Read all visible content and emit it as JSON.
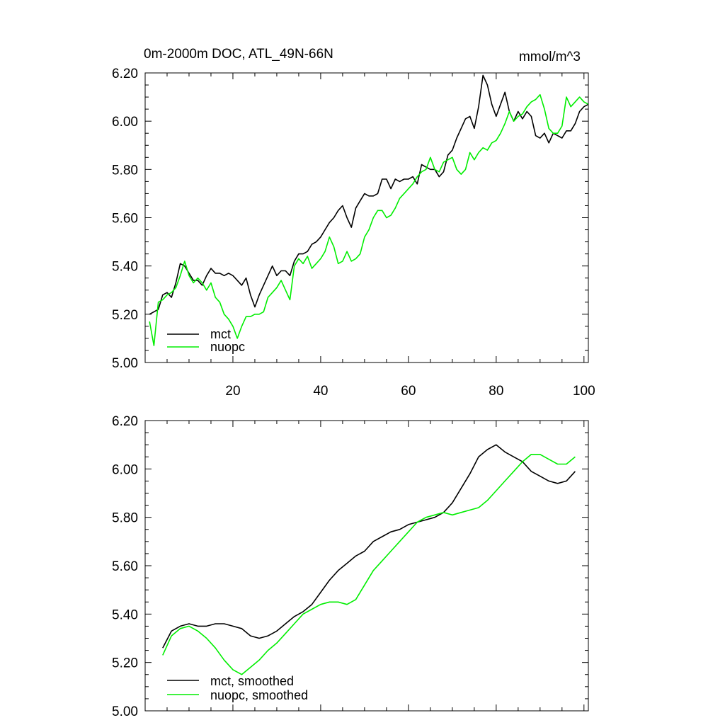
{
  "chart_data": [
    {
      "type": "line",
      "title": "0m-2000m DOC, ATL_49N-66N",
      "units": "mmol/m^3",
      "xlim": [
        0,
        101
      ],
      "ylim": [
        5.0,
        6.2
      ],
      "xticks": [
        20,
        40,
        60,
        80,
        100
      ],
      "yticks": [
        "5.00",
        "5.20",
        "5.40",
        "5.60",
        "5.80",
        "6.00",
        "6.20"
      ],
      "legend_position": "bottom-left",
      "series": [
        {
          "name": "mct",
          "color": "#000000",
          "x": [
            1,
            2,
            3,
            4,
            5,
            6,
            7,
            8,
            9,
            10,
            11,
            12,
            13,
            14,
            15,
            16,
            17,
            18,
            19,
            20,
            21,
            22,
            23,
            24,
            25,
            26,
            27,
            28,
            29,
            30,
            31,
            32,
            33,
            34,
            35,
            36,
            37,
            38,
            39,
            40,
            41,
            42,
            43,
            44,
            45,
            46,
            47,
            48,
            49,
            50,
            51,
            52,
            53,
            54,
            55,
            56,
            57,
            58,
            59,
            60,
            61,
            62,
            63,
            64,
            65,
            66,
            67,
            68,
            69,
            70,
            71,
            72,
            73,
            74,
            75,
            76,
            77,
            78,
            79,
            80,
            81,
            82,
            83,
            84,
            85,
            86,
            87,
            88,
            89,
            90,
            91,
            92,
            93,
            94,
            95,
            96,
            97,
            98,
            99,
            100,
            101
          ],
          "values": [
            5.2,
            5.21,
            5.22,
            5.28,
            5.29,
            5.27,
            5.33,
            5.41,
            5.4,
            5.37,
            5.34,
            5.34,
            5.32,
            5.36,
            5.39,
            5.37,
            5.37,
            5.36,
            5.37,
            5.36,
            5.34,
            5.32,
            5.35,
            5.28,
            5.23,
            5.28,
            5.32,
            5.36,
            5.4,
            5.36,
            5.38,
            5.38,
            5.36,
            5.42,
            5.45,
            5.45,
            5.46,
            5.49,
            5.5,
            5.52,
            5.55,
            5.58,
            5.6,
            5.63,
            5.65,
            5.6,
            5.56,
            5.64,
            5.67,
            5.7,
            5.69,
            5.69,
            5.7,
            5.76,
            5.76,
            5.72,
            5.76,
            5.75,
            5.76,
            5.76,
            5.77,
            5.74,
            5.82,
            5.81,
            5.8,
            5.8,
            5.77,
            5.79,
            5.86,
            5.88,
            5.93,
            5.97,
            6.01,
            6.02,
            5.97,
            6.06,
            6.19,
            6.15,
            6.07,
            6.02,
            6.07,
            6.12,
            6.04,
            6.0,
            6.04,
            6.01,
            6.04,
            6.02,
            5.94,
            5.93,
            5.95,
            5.91,
            5.95,
            5.94,
            5.93,
            5.96,
            5.96,
            5.99,
            6.04,
            6.06,
            6.07
          ]
        },
        {
          "name": "nuopc",
          "color": "#00ee00",
          "x": [
            1,
            2,
            3,
            4,
            5,
            6,
            7,
            8,
            9,
            10,
            11,
            12,
            13,
            14,
            15,
            16,
            17,
            18,
            19,
            20,
            21,
            22,
            23,
            24,
            25,
            26,
            27,
            28,
            29,
            30,
            31,
            32,
            33,
            34,
            35,
            36,
            37,
            38,
            39,
            40,
            41,
            42,
            43,
            44,
            45,
            46,
            47,
            48,
            49,
            50,
            51,
            52,
            53,
            54,
            55,
            56,
            57,
            58,
            59,
            60,
            61,
            62,
            63,
            64,
            65,
            66,
            67,
            68,
            69,
            70,
            71,
            72,
            73,
            74,
            75,
            76,
            77,
            78,
            79,
            80,
            81,
            82,
            83,
            84,
            85,
            86,
            87,
            88,
            89,
            90,
            91,
            92,
            93,
            94,
            95,
            96,
            97,
            98,
            99,
            100,
            101
          ],
          "values": [
            5.17,
            5.07,
            5.25,
            5.26,
            5.28,
            5.29,
            5.31,
            5.36,
            5.42,
            5.36,
            5.33,
            5.35,
            5.33,
            5.3,
            5.33,
            5.27,
            5.25,
            5.2,
            5.18,
            5.15,
            5.1,
            5.15,
            5.19,
            5.19,
            5.2,
            5.2,
            5.21,
            5.27,
            5.29,
            5.31,
            5.34,
            5.3,
            5.26,
            5.4,
            5.43,
            5.41,
            5.44,
            5.39,
            5.41,
            5.43,
            5.46,
            5.52,
            5.48,
            5.41,
            5.42,
            5.46,
            5.42,
            5.43,
            5.45,
            5.52,
            5.55,
            5.6,
            5.63,
            5.63,
            5.6,
            5.61,
            5.64,
            5.68,
            5.7,
            5.72,
            5.74,
            5.77,
            5.79,
            5.8,
            5.85,
            5.8,
            5.79,
            5.83,
            5.84,
            5.85,
            5.8,
            5.78,
            5.8,
            5.87,
            5.84,
            5.87,
            5.89,
            5.88,
            5.91,
            5.92,
            5.95,
            5.99,
            6.04,
            6.0,
            6.02,
            6.03,
            6.06,
            6.08,
            6.09,
            6.11,
            6.05,
            5.97,
            5.95,
            5.95,
            5.98,
            6.1,
            6.06,
            6.08,
            6.1,
            6.08,
            6.07
          ]
        }
      ]
    },
    {
      "type": "line",
      "title": "",
      "xlim": [
        0,
        101
      ],
      "ylim": [
        5.0,
        6.2
      ],
      "xticks": [
        20,
        40,
        60,
        80,
        100
      ],
      "yticks": [
        "5.00",
        "5.20",
        "5.40",
        "5.60",
        "5.80",
        "6.00",
        "6.20"
      ],
      "legend_position": "bottom-left",
      "series": [
        {
          "name": "mct, smoothed",
          "color": "#000000",
          "x": [
            4,
            6,
            8,
            10,
            12,
            14,
            16,
            18,
            20,
            22,
            24,
            26,
            28,
            30,
            32,
            34,
            36,
            38,
            40,
            42,
            44,
            46,
            48,
            50,
            52,
            54,
            56,
            58,
            60,
            62,
            64,
            66,
            68,
            70,
            72,
            74,
            76,
            78,
            80,
            82,
            84,
            86,
            88,
            90,
            92,
            94,
            96,
            98
          ],
          "values": [
            5.26,
            5.33,
            5.35,
            5.36,
            5.35,
            5.35,
            5.36,
            5.36,
            5.35,
            5.34,
            5.31,
            5.3,
            5.31,
            5.33,
            5.36,
            5.39,
            5.41,
            5.44,
            5.49,
            5.54,
            5.58,
            5.61,
            5.64,
            5.66,
            5.7,
            5.72,
            5.74,
            5.75,
            5.77,
            5.78,
            5.79,
            5.8,
            5.82,
            5.86,
            5.92,
            5.98,
            6.05,
            6.08,
            6.1,
            6.07,
            6.05,
            6.03,
            5.99,
            5.97,
            5.95,
            5.94,
            5.95,
            5.99
          ]
        },
        {
          "name": "nuopc, smoothed",
          "color": "#00ee00",
          "x": [
            4,
            6,
            8,
            10,
            12,
            14,
            16,
            18,
            20,
            22,
            24,
            26,
            28,
            30,
            32,
            34,
            36,
            38,
            40,
            42,
            44,
            46,
            48,
            50,
            52,
            54,
            56,
            58,
            60,
            62,
            64,
            66,
            68,
            70,
            72,
            74,
            76,
            78,
            80,
            82,
            84,
            86,
            88,
            90,
            92,
            94,
            96,
            98
          ],
          "values": [
            5.23,
            5.31,
            5.34,
            5.35,
            5.33,
            5.3,
            5.26,
            5.21,
            5.17,
            5.15,
            5.18,
            5.21,
            5.25,
            5.28,
            5.32,
            5.36,
            5.4,
            5.42,
            5.44,
            5.45,
            5.45,
            5.44,
            5.46,
            5.52,
            5.58,
            5.62,
            5.66,
            5.7,
            5.74,
            5.78,
            5.8,
            5.81,
            5.82,
            5.81,
            5.82,
            5.83,
            5.84,
            5.87,
            5.91,
            5.95,
            5.99,
            6.03,
            6.06,
            6.06,
            6.04,
            6.02,
            6.02,
            6.05
          ]
        }
      ]
    }
  ]
}
